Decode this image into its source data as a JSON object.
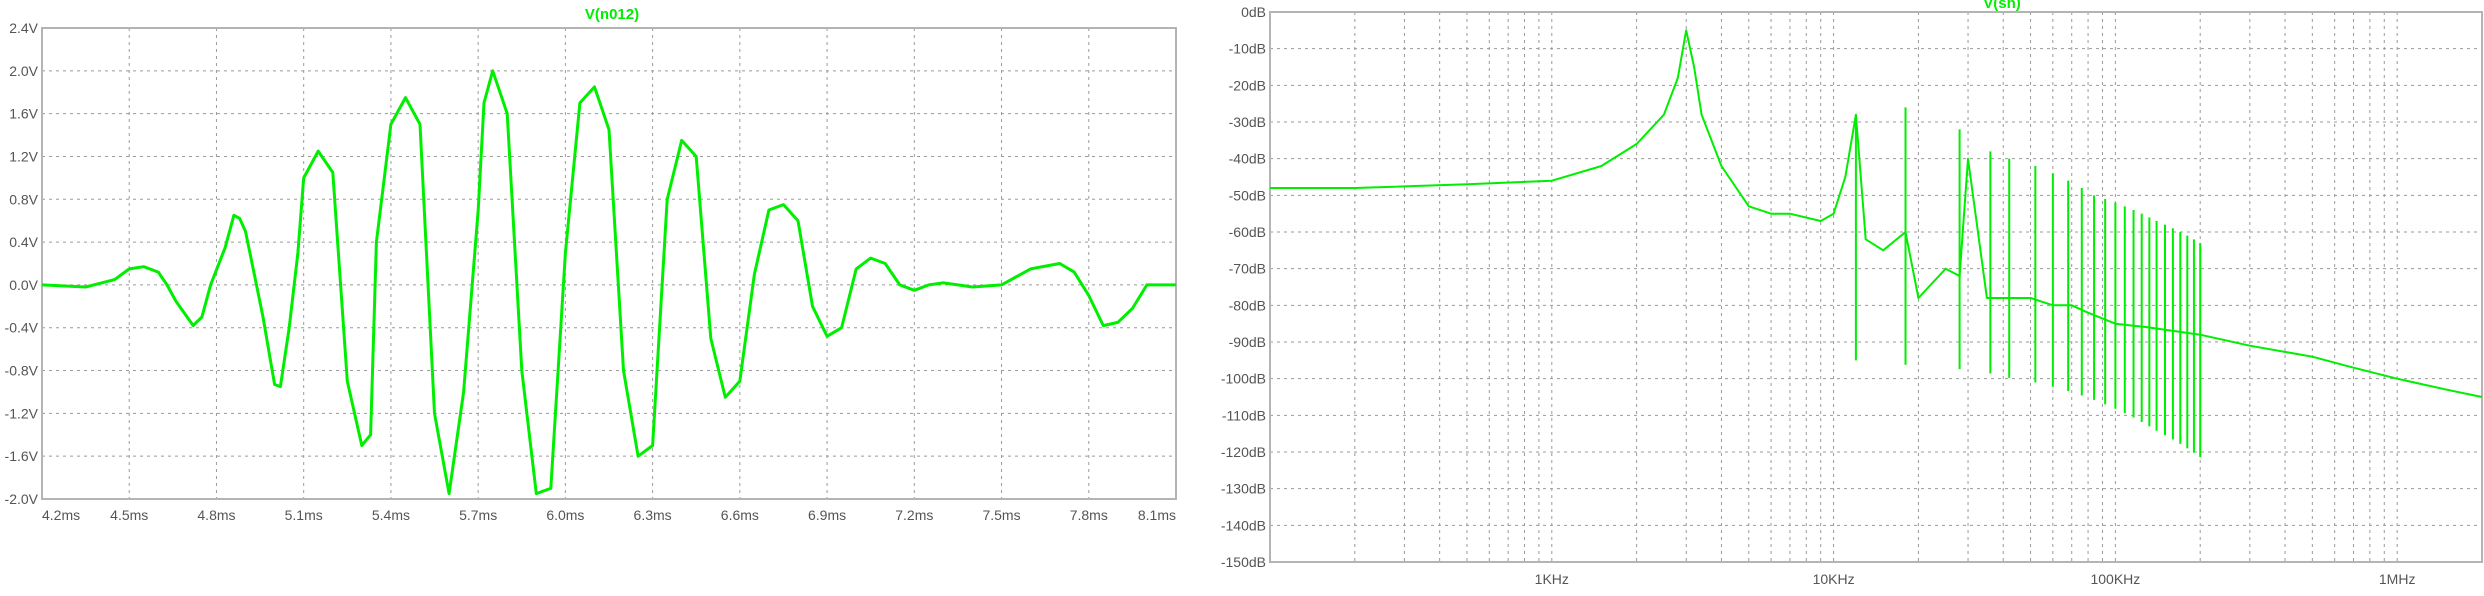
{
  "colors": {
    "trace": "#00ee00",
    "axis_text": "#555555",
    "grid": "#9a9a9a",
    "frame": "#b4b4b4"
  },
  "chart_data": [
    {
      "type": "line",
      "title": "V(n012)",
      "x_unit": "ms",
      "xlim": [
        4.2,
        8.1
      ],
      "ylim": [
        -2.0,
        2.4
      ],
      "x_ticks": [
        4.2,
        4.5,
        4.8,
        5.1,
        5.4,
        5.7,
        6.0,
        6.3,
        6.6,
        6.9,
        7.2,
        7.5,
        7.8,
        8.1
      ],
      "x_tick_labels": [
        "4.2ms",
        "4.5ms",
        "4.8ms",
        "5.1ms",
        "5.4ms",
        "5.7ms",
        "6.0ms",
        "6.3ms",
        "6.6ms",
        "6.9ms",
        "7.2ms",
        "7.5ms",
        "7.8ms",
        "8.1ms"
      ],
      "y_ticks": [
        2.4,
        2.0,
        1.6,
        1.2,
        0.8,
        0.4,
        0.0,
        -0.4,
        -0.8,
        -1.2,
        -1.6,
        -2.0
      ],
      "y_tick_labels": [
        "2.4V",
        "2.0V",
        "1.6V",
        "1.2V",
        "0.8V",
        "0.4V",
        "0.0V",
        "-0.4V",
        "-0.8V",
        "-1.2V",
        "-1.6V",
        "-2.0V"
      ],
      "grid": true,
      "series": [
        {
          "x": [
            4.2,
            4.35,
            4.45,
            4.5,
            4.55,
            4.6,
            4.63,
            4.66,
            4.72,
            4.75,
            4.78,
            4.83,
            4.86,
            4.88,
            4.9,
            4.93,
            4.96,
            5.0,
            5.02,
            5.05,
            5.08,
            5.1,
            5.15,
            5.2,
            5.25,
            5.3,
            5.33,
            5.35,
            5.4,
            5.45,
            5.5,
            5.55,
            5.6,
            5.65,
            5.7,
            5.72,
            5.75,
            5.8,
            5.85,
            5.9,
            5.95,
            6.0,
            6.05,
            6.1,
            6.15,
            6.2,
            6.25,
            6.3,
            6.35,
            6.4,
            6.45,
            6.5,
            6.55,
            6.6,
            6.65,
            6.7,
            6.75,
            6.8,
            6.85,
            6.9,
            6.95,
            7.0,
            7.05,
            7.1,
            7.15,
            7.2,
            7.25,
            7.3,
            7.35,
            7.4,
            7.5,
            7.6,
            7.7,
            7.75,
            7.8,
            7.85,
            7.9,
            7.95,
            8.0,
            8.05,
            8.1
          ],
          "y": [
            0.0,
            -0.02,
            0.05,
            0.15,
            0.17,
            0.12,
            0.0,
            -0.15,
            -0.38,
            -0.3,
            0.0,
            0.35,
            0.65,
            0.62,
            0.5,
            0.1,
            -0.3,
            -0.93,
            -0.95,
            -0.4,
            0.3,
            1.0,
            1.25,
            1.05,
            -0.9,
            -1.5,
            -1.4,
            0.4,
            1.5,
            1.75,
            1.5,
            -1.2,
            -1.95,
            -1.0,
            0.7,
            1.7,
            2.0,
            1.6,
            -0.8,
            -1.95,
            -1.9,
            0.3,
            1.7,
            1.85,
            1.45,
            -0.8,
            -1.6,
            -1.5,
            0.8,
            1.35,
            1.2,
            -0.5,
            -1.05,
            -0.9,
            0.1,
            0.7,
            0.75,
            0.6,
            -0.2,
            -0.48,
            -0.4,
            0.15,
            0.25,
            0.2,
            0.0,
            -0.05,
            0.0,
            0.02,
            0.0,
            -0.02,
            0.0,
            0.15,
            0.2,
            0.12,
            -0.1,
            -0.38,
            -0.35,
            -0.22,
            0,
            0,
            0
          ]
        }
      ]
    },
    {
      "type": "line",
      "title": "V(sh)",
      "x_scale": "log",
      "x_unit": "Hz",
      "xlim": [
        100,
        2000000
      ],
      "ylim": [
        -150,
        0
      ],
      "x_ticks": [
        1000,
        10000,
        100000,
        1000000
      ],
      "x_tick_labels": [
        "1KHz",
        "10KHz",
        "100KHz",
        "1MHz"
      ],
      "y_ticks": [
        0,
        -10,
        -20,
        -30,
        -40,
        -50,
        -60,
        -70,
        -80,
        -90,
        -100,
        -110,
        -120,
        -130,
        -140,
        -150
      ],
      "y_tick_labels": [
        "0dB",
        "-10dB",
        "-20dB",
        "-30dB",
        "-40dB",
        "-50dB",
        "-60dB",
        "-70dB",
        "-80dB",
        "-90dB",
        "-100dB",
        "-110dB",
        "-120dB",
        "-130dB",
        "-140dB",
        "-150dB"
      ],
      "grid": true,
      "series": [
        {
          "x": [
            100,
            200,
            500,
            1000,
            1500,
            2000,
            2500,
            2800,
            3000,
            3200,
            3400,
            4000,
            5000,
            6000,
            7000,
            9000,
            10000,
            11000,
            12000,
            13000,
            15000,
            18000,
            20000,
            25000,
            28000,
            30000,
            35000,
            40000,
            50000,
            60000,
            70000,
            80000,
            100000,
            130000,
            200000,
            300000,
            500000,
            700000,
            1000000,
            1500000,
            2000000
          ],
          "y": [
            -48,
            -48,
            -47,
            -46,
            -42,
            -36,
            -28,
            -18,
            -5,
            -15,
            -28,
            -42,
            -53,
            -55,
            -55,
            -57,
            -55,
            -45,
            -28,
            -62,
            -65,
            -60,
            -78,
            -70,
            -72,
            -40,
            -78,
            -78,
            -78,
            -80,
            -80,
            -82,
            -85,
            -86,
            -88,
            -91,
            -94,
            -97,
            -100,
            -103,
            -105
          ]
        }
      ],
      "harmonic_peaks": {
        "x": [
          12000,
          18000,
          28000,
          36000,
          42000,
          52000,
          60000,
          68000,
          76000,
          84000,
          92000,
          100000,
          108000,
          116000,
          124000,
          132000,
          140000,
          150000,
          160000,
          170000,
          180000,
          190000,
          200000
        ],
        "y": [
          -30,
          -26,
          -32,
          -38,
          -40,
          -42,
          -44,
          -46,
          -48,
          -50,
          -51,
          -52,
          -53,
          -54,
          -55,
          -56,
          -57,
          -58,
          -59,
          -60,
          -61,
          -62,
          -63
        ]
      }
    }
  ]
}
